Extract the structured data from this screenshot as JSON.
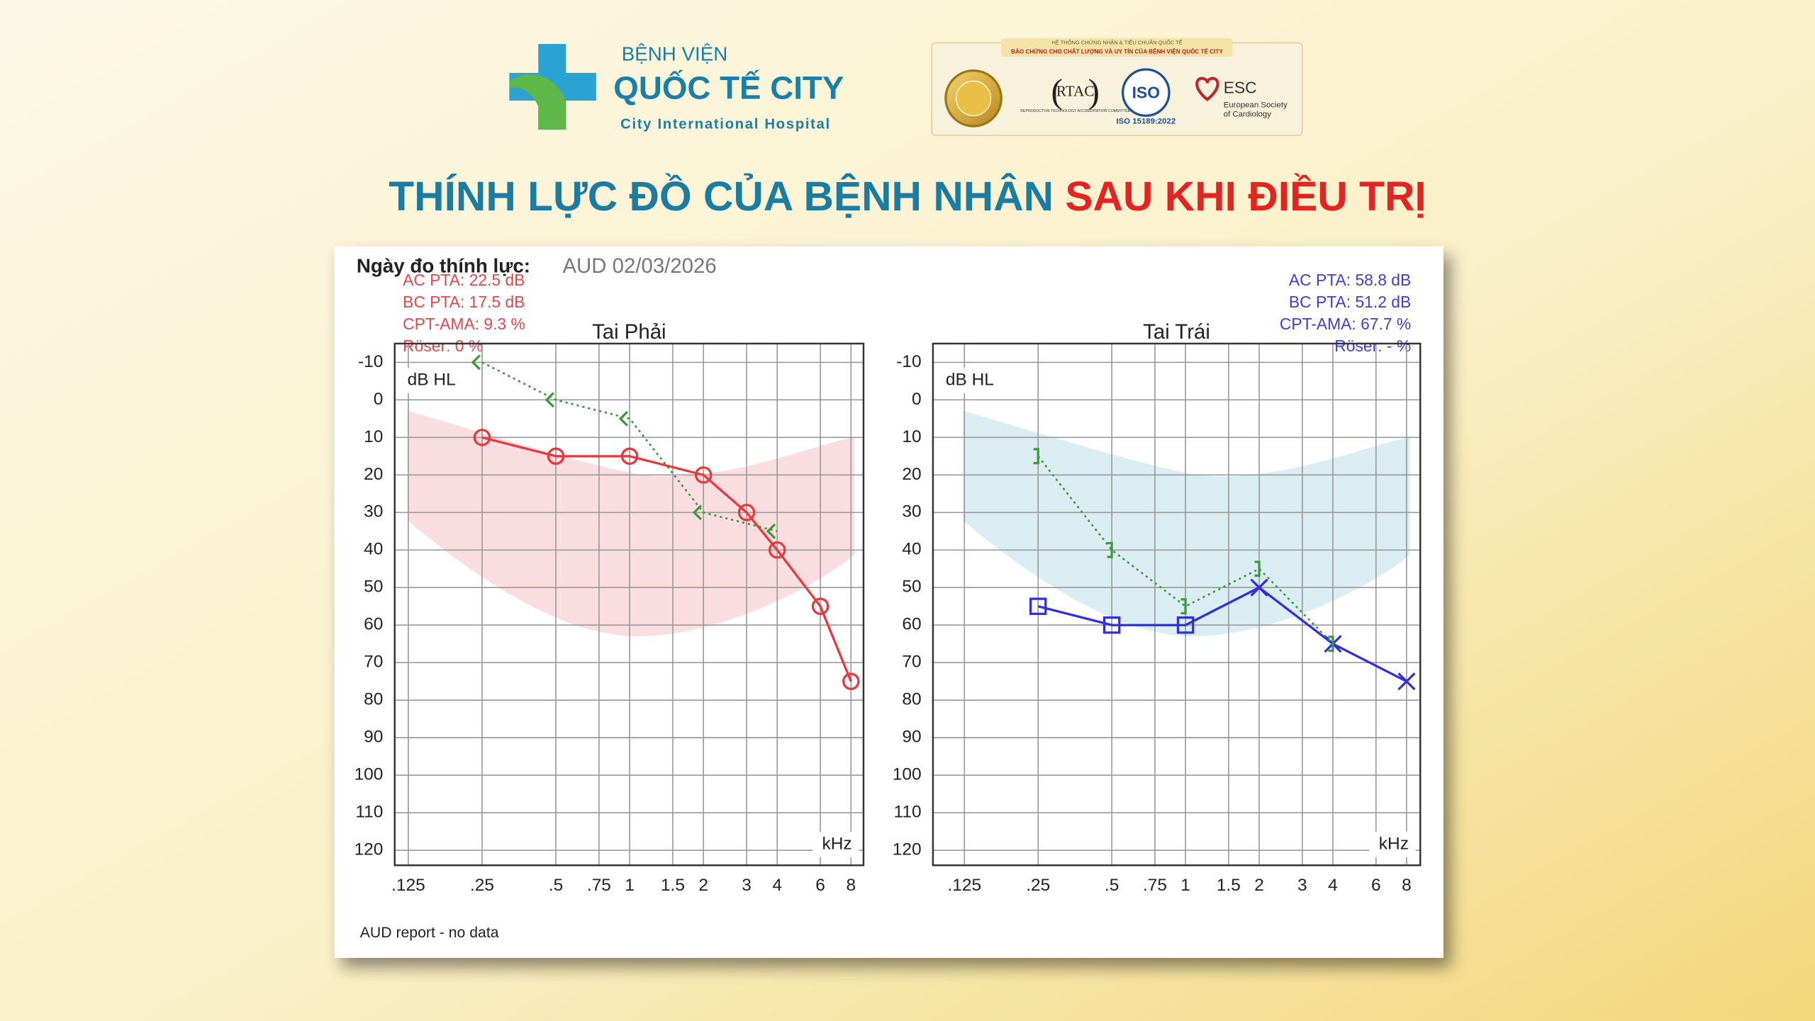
{
  "header": {
    "hospital_line1": "BỆNH VIỆN",
    "hospital_line2": "QUỐC TẾ CITY",
    "hospital_line3": "City International Hospital",
    "cert_heading": "HỆ THỐNG CHỨNG NHẬN & TIÊU CHUẨN QUỐC TẾ",
    "cert_subheading": "BẢO CHỨNG CHO CHẤT LƯỢNG VÀ UY TÍN CỦA BỆNH VIỆN QUỐC TẾ CITY",
    "rtac": "RTAC",
    "rtac_caption": "REPRODUCTIVE TECHNOLOGY ACCREDITATION COMMITTEE",
    "iso": "ISO",
    "iso_caption": "ISO 15189:2022",
    "esc": "ESC",
    "esc_caption_1": "European Society",
    "esc_caption_2": "of Cardiology"
  },
  "title": {
    "part1": "THÍNH LỰC ĐỒ CỦA BỆNH NHÂN ",
    "part2": "SAU KHI ĐIỀU TRỊ"
  },
  "report": {
    "date_label": "Ngày đo thính lực:",
    "date_value": "AUD 02/03/2026",
    "footer": "AUD report - no data"
  },
  "chart_data": [
    {
      "type": "line",
      "title": "Tai Phải",
      "y_label": "dB HL",
      "x_label": "kHz",
      "stats": [
        "AC PTA: 22.5 dB",
        "BC PTA: 17.5 dB",
        "CPT-AMA: 9.3 %",
        "Röser: 0 %"
      ],
      "stats_color": "#e8474a",
      "stats_align": "left",
      "band_color": "#f7c9cb",
      "log_x": true,
      "grid": true,
      "xlim": [
        0.11,
        9
      ],
      "ylim": [
        -15,
        124
      ],
      "y_inverted": true,
      "xticks": [
        {
          "value": 0.125,
          "label": ".125"
        },
        {
          "value": 0.25,
          "label": ".25"
        },
        {
          "value": 0.5,
          "label": ".5"
        },
        {
          "value": 0.75,
          "label": ".75"
        },
        1,
        {
          "value": 1.5,
          "label": "1.5"
        },
        2,
        3,
        4,
        6,
        8
      ],
      "yticks": [
        -10,
        0,
        10,
        20,
        30,
        40,
        50,
        60,
        70,
        80,
        90,
        100,
        110,
        120
      ],
      "series": [
        {
          "color": "#e8383b",
          "line_style": "solid",
          "marker": "circle",
          "x": [
            0.25,
            0.5,
            1,
            2,
            3,
            4,
            6,
            8
          ],
          "values": [
            10,
            15,
            15,
            20,
            30,
            40,
            55,
            75
          ]
        },
        {
          "color": "#3a9a3a",
          "line_style": "dotted",
          "marker": "bracket-left",
          "x": [
            0.25,
            0.5,
            1,
            2,
            4
          ],
          "values": [
            -10,
            0,
            5,
            30,
            35
          ]
        }
      ]
    },
    {
      "type": "line",
      "title": "Tai Trái",
      "y_label": "dB HL",
      "x_label": "kHz",
      "stats": [
        "AC PTA: 58.8 dB",
        "BC PTA: 51.2 dB",
        "CPT-AMA: 67.7 %",
        "Röser: - %"
      ],
      "stats_color": "#3d3de0",
      "stats_align": "right",
      "band_color": "#c9e6ee",
      "log_x": true,
      "grid": true,
      "xlim": [
        0.093,
        9.1
      ],
      "ylim": [
        -15,
        124
      ],
      "y_inverted": true,
      "xticks": [
        {
          "value": 0.125,
          "label": ".125"
        },
        {
          "value": 0.25,
          "label": ".25"
        },
        {
          "value": 0.5,
          "label": ".5"
        },
        {
          "value": 0.75,
          "label": ".75"
        },
        1,
        {
          "value": 1.5,
          "label": "1.5"
        },
        2,
        3,
        4,
        6,
        8
      ],
      "yticks": [
        -10,
        0,
        10,
        20,
        30,
        40,
        50,
        60,
        70,
        80,
        90,
        100,
        110,
        120
      ],
      "series": [
        {
          "color": "#2f2fe0",
          "line_style": "solid",
          "markers": [
            "square",
            "square",
            "square",
            "cross",
            "cross",
            "cross"
          ],
          "x": [
            0.25,
            0.5,
            1,
            2,
            4,
            8
          ],
          "values": [
            55,
            60,
            60,
            50,
            65,
            75
          ]
        },
        {
          "color": "#3a9a3a",
          "line_style": "dotted",
          "marker": "bracket-right",
          "x": [
            0.25,
            0.5,
            1,
            2,
            4
          ],
          "values": [
            15,
            40,
            55,
            45,
            65
          ]
        }
      ]
    }
  ]
}
